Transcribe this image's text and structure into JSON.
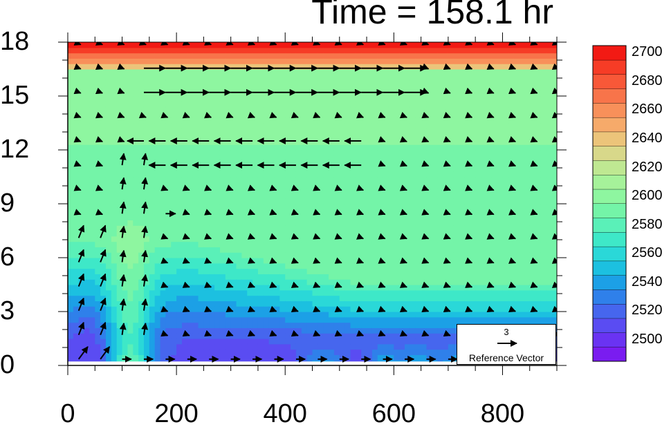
{
  "chart_data": {
    "type": "heatmap",
    "title": "Time = 158.1 hr",
    "x_ticks": [
      "0",
      "200",
      "400",
      "600",
      "800"
    ],
    "y_ticks": [
      "0",
      "3",
      "6",
      "9",
      "12",
      "15",
      "18"
    ],
    "xlim": [
      0,
      900
    ],
    "ylim": [
      0,
      18
    ],
    "colorbar": {
      "labels": [
        "2500",
        "2520",
        "2540",
        "2560",
        "2580",
        "2600",
        "2620",
        "2640",
        "2660",
        "2680",
        "2700"
      ],
      "levels": [
        2490,
        2500,
        2510,
        2520,
        2530,
        2540,
        2550,
        2560,
        2570,
        2580,
        2590,
        2600,
        2610,
        2620,
        2630,
        2640,
        2650,
        2660,
        2670,
        2680,
        2690,
        2700,
        2710
      ],
      "colors": [
        "#7a1cf0",
        "#6a33f2",
        "#5a4cf2",
        "#4666ee",
        "#2f80ea",
        "#1ca0e6",
        "#1cc0e0",
        "#2ad8d8",
        "#3ee8c8",
        "#5af0b8",
        "#74f4a8",
        "#8ef6a0",
        "#a6f29a",
        "#bfe892",
        "#d8d88a",
        "#ecc47a",
        "#f6aa6a",
        "#f8905a",
        "#f8744a",
        "#f85838",
        "#f63c26",
        "#f21a14"
      ]
    },
    "reference_vector": {
      "magnitude": "3",
      "label": "Reference Vector"
    },
    "field_notes": "Contour field of ~2490-2710 vs distance (0-900) and height (0-18); vectors show wind"
  },
  "colors": {
    "background": "#ffffff",
    "axis": "#000000"
  }
}
